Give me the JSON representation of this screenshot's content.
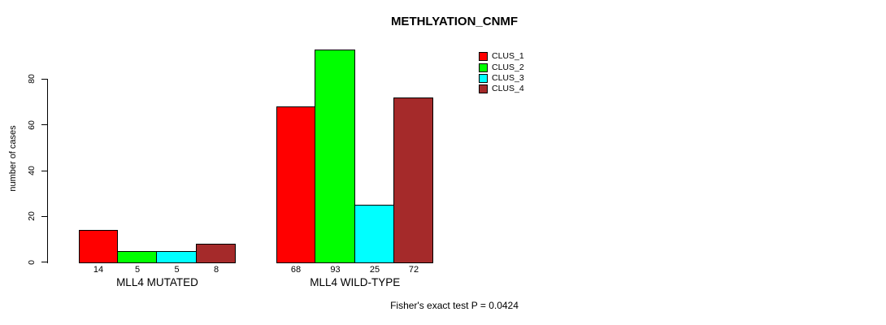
{
  "chart_data": {
    "type": "bar",
    "title": "METHLYATION_CNMF",
    "ylabel": "number of cases",
    "xlabel": "",
    "ylim": [
      0,
      80
    ],
    "yticks": [
      0,
      20,
      40,
      60,
      80
    ],
    "grid": false,
    "legend_position": "top-right",
    "categories": [
      "MLL4 MUTATED",
      "MLL4 WILD-TYPE"
    ],
    "series": [
      {
        "name": "CLUS_1",
        "color": "#FF0000",
        "values": [
          14,
          68
        ]
      },
      {
        "name": "CLUS_2",
        "color": "#00FF00",
        "values": [
          5,
          93
        ]
      },
      {
        "name": "CLUS_3",
        "color": "#00FFFF",
        "values": [
          5,
          25
        ]
      },
      {
        "name": "CLUS_4",
        "color": "#A52A2A",
        "values": [
          8,
          72
        ]
      }
    ],
    "annotation": "Fisher's exact test P = 0.0424"
  }
}
